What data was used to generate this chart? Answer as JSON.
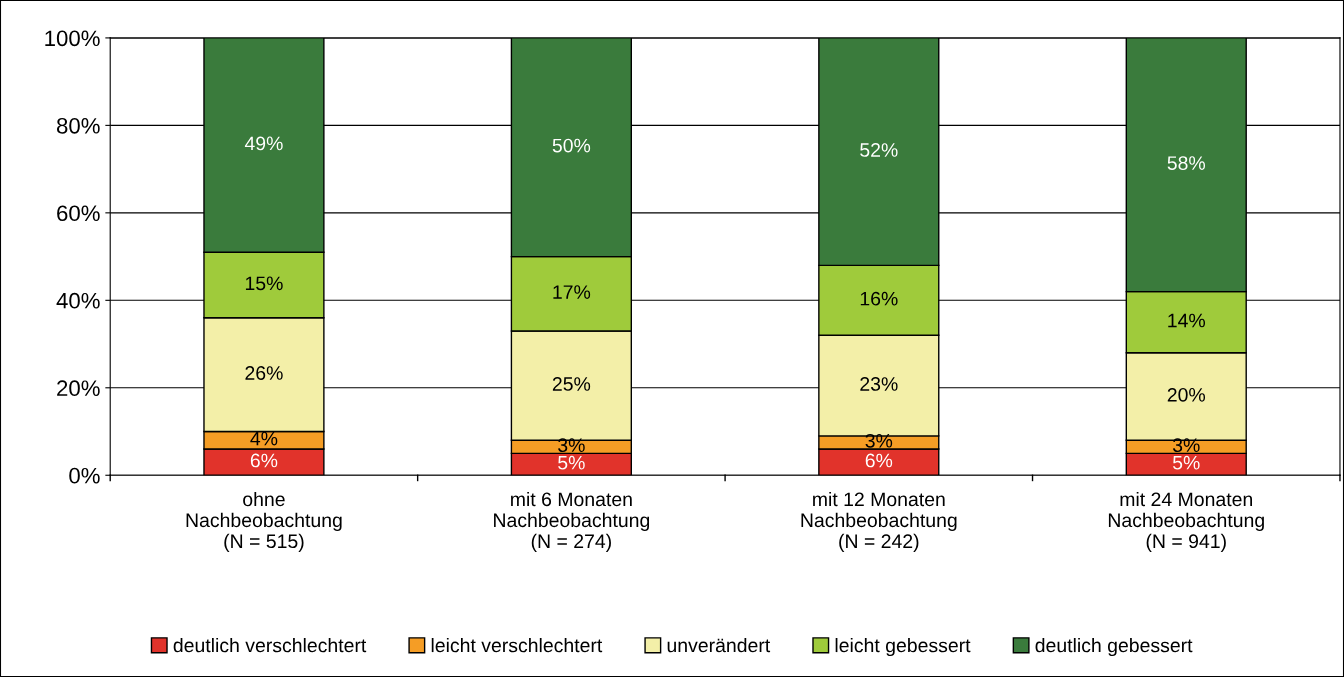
{
  "chart_data": {
    "type": "bar",
    "stacked": true,
    "categories": [
      "ohne\nNachbeobachtung\n(N = 515)",
      "mit 6 Monaten\nNachbeobachtung\n(N = 274)",
      "mit 12 Monaten\nNachbeobachtung\n(N = 242)",
      "mit 24 Monaten\nNachbeobachtung\n(N = 941)"
    ],
    "series": [
      {
        "name": "deutlich verschlechtert",
        "color": "#e1332b",
        "values": [
          6,
          5,
          6,
          5
        ],
        "value_labels": [
          "6%",
          "5%",
          "6%",
          "5%"
        ]
      },
      {
        "name": "leicht verschlechtert",
        "color": "#f59d25",
        "values": [
          4,
          3,
          3,
          3
        ],
        "value_labels": [
          "4%",
          "3%",
          "3%",
          "3%"
        ]
      },
      {
        "name": "unverändert",
        "color": "#f3efa8",
        "values": [
          26,
          25,
          23,
          20
        ],
        "value_labels": [
          "26%",
          "25%",
          "23%",
          "20%"
        ]
      },
      {
        "name": "leicht gebessert",
        "color": "#9fcb3b",
        "values": [
          15,
          17,
          16,
          14
        ],
        "value_labels": [
          "15%",
          "17%",
          "16%",
          "14%"
        ]
      },
      {
        "name": "deutlich gebessert",
        "color": "#3a7b3c",
        "values": [
          49,
          50,
          52,
          58
        ],
        "value_labels": [
          "49%",
          "50%",
          "52%",
          "58%"
        ]
      }
    ],
    "ylim": [
      0,
      100
    ],
    "yticks": [
      {
        "value": 0,
        "label": "0%"
      },
      {
        "value": 20,
        "label": "20%"
      },
      {
        "value": 40,
        "label": "40%"
      },
      {
        "value": 60,
        "label": "60%"
      },
      {
        "value": 80,
        "label": "80%"
      },
      {
        "value": 100,
        "label": "100%"
      }
    ],
    "grid": "y",
    "legend": "bottom"
  }
}
